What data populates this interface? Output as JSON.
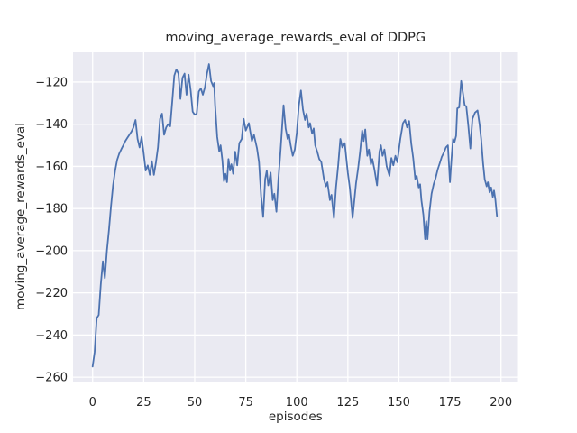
{
  "figure": {
    "background": "#ffffff"
  },
  "chart_data": {
    "type": "line",
    "title": "moving_average_rewards_eval of DDPG",
    "xlabel": "episodes",
    "ylabel": "moving_average_rewards_eval",
    "x_ticks": [
      0,
      25,
      50,
      75,
      100,
      125,
      150,
      175,
      200
    ],
    "y_ticks": [
      -120,
      -140,
      -160,
      -180,
      -200,
      -220,
      -240,
      -260
    ],
    "xlim": [
      -9.6,
      208.3
    ],
    "ylim": [
      -262.3,
      -105.9
    ],
    "grid": "on",
    "legend": "none",
    "style": {
      "panel_bg": "#eaeaf2",
      "grid_color": "#ffffff",
      "line_color": "#4c72b0",
      "text_color": "#262626",
      "line_width": 1.8
    },
    "series": [
      {
        "name": "moving_average_rewards_eval",
        "color": "#4c72b0",
        "points": [
          [
            0,
            -255
          ],
          [
            1,
            -248
          ],
          [
            2,
            -232
          ],
          [
            3,
            -230.5
          ],
          [
            4,
            -216
          ],
          [
            5,
            -205
          ],
          [
            6,
            -213
          ],
          [
            7,
            -200
          ],
          [
            8,
            -190
          ],
          [
            9,
            -179
          ],
          [
            10,
            -169
          ],
          [
            11,
            -162
          ],
          [
            12,
            -157
          ],
          [
            13,
            -154
          ],
          [
            14,
            -152
          ],
          [
            15,
            -150
          ],
          [
            16,
            -148
          ],
          [
            17,
            -146.5
          ],
          [
            18,
            -145
          ],
          [
            19,
            -143.5
          ],
          [
            20,
            -141.5
          ],
          [
            21,
            -138
          ],
          [
            22,
            -147
          ],
          [
            23,
            -151
          ],
          [
            24,
            -146
          ],
          [
            25,
            -154
          ],
          [
            26,
            -162
          ],
          [
            27,
            -159.5
          ],
          [
            28,
            -164
          ],
          [
            29,
            -157.5
          ],
          [
            30,
            -164
          ],
          [
            31,
            -158
          ],
          [
            32,
            -151
          ],
          [
            33,
            -137.5
          ],
          [
            34,
            -135
          ],
          [
            35,
            -145
          ],
          [
            36,
            -141.5
          ],
          [
            37,
            -140
          ],
          [
            38,
            -141
          ],
          [
            39,
            -129
          ],
          [
            40,
            -117
          ],
          [
            41,
            -114
          ],
          [
            42,
            -116
          ],
          [
            43,
            -128
          ],
          [
            44,
            -118
          ],
          [
            45,
            -116
          ],
          [
            46,
            -126
          ],
          [
            47,
            -116.5
          ],
          [
            48,
            -124
          ],
          [
            49,
            -134
          ],
          [
            50,
            -135.5
          ],
          [
            51,
            -135
          ],
          [
            52,
            -124.5
          ],
          [
            53,
            -123
          ],
          [
            54,
            -126
          ],
          [
            55,
            -122.5
          ],
          [
            56,
            -116
          ],
          [
            57,
            -111.5
          ],
          [
            58,
            -119.5
          ],
          [
            59,
            -122
          ],
          [
            59.5,
            -120.5
          ],
          [
            60,
            -131
          ],
          [
            61,
            -146
          ],
          [
            62,
            -153
          ],
          [
            62.7,
            -150
          ],
          [
            63.5,
            -157
          ],
          [
            64.3,
            -167
          ],
          [
            65,
            -163.5
          ],
          [
            65.8,
            -167.5
          ],
          [
            66.5,
            -156.5
          ],
          [
            67.3,
            -162
          ],
          [
            68,
            -159
          ],
          [
            68.8,
            -163.5
          ],
          [
            69.8,
            -153
          ],
          [
            70.8,
            -159.5
          ],
          [
            71.8,
            -149
          ],
          [
            73,
            -147
          ],
          [
            74,
            -137.5
          ],
          [
            75,
            -143
          ],
          [
            76.5,
            -139.5
          ],
          [
            78,
            -148
          ],
          [
            79,
            -145
          ],
          [
            80.5,
            -151.5
          ],
          [
            81.5,
            -158
          ],
          [
            82.5,
            -174
          ],
          [
            83.5,
            -184
          ],
          [
            84.5,
            -166
          ],
          [
            85.3,
            -162
          ],
          [
            86,
            -169
          ],
          [
            87.2,
            -163
          ],
          [
            88.2,
            -176
          ],
          [
            89,
            -173
          ],
          [
            90,
            -181.5
          ],
          [
            91,
            -166
          ],
          [
            92,
            -153
          ],
          [
            93.5,
            -131
          ],
          [
            94.5,
            -142
          ],
          [
            95.5,
            -147
          ],
          [
            96.2,
            -145
          ],
          [
            97,
            -150
          ],
          [
            98,
            -155
          ],
          [
            99,
            -152
          ],
          [
            100,
            -144
          ],
          [
            101,
            -131
          ],
          [
            102,
            -124
          ],
          [
            103,
            -133
          ],
          [
            104,
            -138
          ],
          [
            104.8,
            -135
          ],
          [
            105.8,
            -141.5
          ],
          [
            106.5,
            -139.5
          ],
          [
            107.5,
            -144.5
          ],
          [
            108.3,
            -142
          ],
          [
            109,
            -150
          ],
          [
            110,
            -153
          ],
          [
            111,
            -156.5
          ],
          [
            112,
            -158
          ],
          [
            113.3,
            -166
          ],
          [
            114.3,
            -169.5
          ],
          [
            115,
            -167.5
          ],
          [
            116.2,
            -176
          ],
          [
            117,
            -173.5
          ],
          [
            118.2,
            -184.5
          ],
          [
            119.2,
            -170
          ],
          [
            120.2,
            -160
          ],
          [
            121.3,
            -147
          ],
          [
            122.3,
            -151
          ],
          [
            123.5,
            -149
          ],
          [
            125,
            -163
          ],
          [
            126,
            -170.5
          ],
          [
            127.3,
            -184.5
          ],
          [
            129,
            -168
          ],
          [
            130,
            -161
          ],
          [
            131,
            -153
          ],
          [
            132,
            -143
          ],
          [
            132.7,
            -148
          ],
          [
            133.5,
            -142.5
          ],
          [
            134.5,
            -155
          ],
          [
            135.3,
            -152
          ],
          [
            136.3,
            -159
          ],
          [
            137,
            -156.5
          ],
          [
            138,
            -161.5
          ],
          [
            139.3,
            -169
          ],
          [
            140.5,
            -153
          ],
          [
            141.2,
            -150
          ],
          [
            142,
            -155
          ],
          [
            142.9,
            -152
          ],
          [
            144,
            -160
          ],
          [
            145.4,
            -164.5
          ],
          [
            146.3,
            -156
          ],
          [
            147.3,
            -159.5
          ],
          [
            148.3,
            -155
          ],
          [
            149.2,
            -158
          ],
          [
            150.7,
            -147
          ],
          [
            152,
            -139.5
          ],
          [
            153,
            -138
          ],
          [
            154,
            -141.5
          ],
          [
            155,
            -138.5
          ],
          [
            156,
            -149
          ],
          [
            157,
            -156
          ],
          [
            158,
            -166
          ],
          [
            158.7,
            -164.5
          ],
          [
            159.7,
            -170
          ],
          [
            160.4,
            -168.5
          ],
          [
            161,
            -176
          ],
          [
            162,
            -183
          ],
          [
            162.8,
            -194.5
          ],
          [
            163.4,
            -186
          ],
          [
            164,
            -194.5
          ],
          [
            165,
            -181.5
          ],
          [
            166,
            -173
          ],
          [
            167,
            -168.5
          ],
          [
            168,
            -165.5
          ],
          [
            169,
            -161.5
          ],
          [
            170,
            -158.5
          ],
          [
            171,
            -155.5
          ],
          [
            172,
            -153.5
          ],
          [
            173,
            -151
          ],
          [
            174,
            -150
          ],
          [
            175,
            -167.5
          ],
          [
            175.7,
            -157
          ],
          [
            176.5,
            -147
          ],
          [
            177.2,
            -148.5
          ],
          [
            178,
            -145.5
          ],
          [
            178.6,
            -132.5
          ],
          [
            179.5,
            -132
          ],
          [
            180.5,
            -119.5
          ],
          [
            181.3,
            -125
          ],
          [
            182.2,
            -131
          ],
          [
            183,
            -131.5
          ],
          [
            184,
            -141
          ],
          [
            185,
            -151.5
          ],
          [
            186,
            -137.5
          ],
          [
            187.3,
            -134.5
          ],
          [
            188.5,
            -133.5
          ],
          [
            189.5,
            -140
          ],
          [
            190.3,
            -147
          ],
          [
            191.2,
            -158.5
          ],
          [
            192,
            -166
          ],
          [
            193,
            -169.5
          ],
          [
            193.6,
            -167.5
          ],
          [
            194.4,
            -172.3
          ],
          [
            195.2,
            -170
          ],
          [
            196,
            -174.5
          ],
          [
            196.6,
            -171.5
          ],
          [
            197.2,
            -175.5
          ],
          [
            198,
            -183.5
          ]
        ]
      }
    ]
  }
}
